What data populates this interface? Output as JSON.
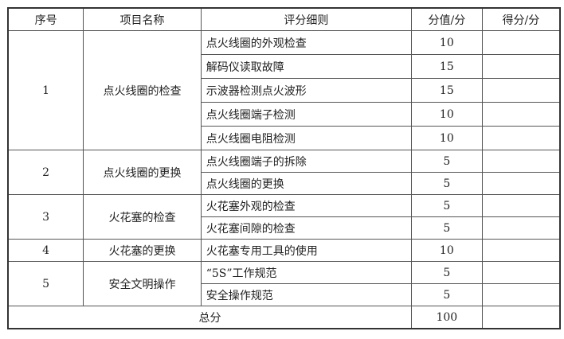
{
  "headers": [
    "序号",
    "项目名称",
    "评分细则",
    "分值/分",
    "得分/分"
  ],
  "groups": [
    {
      "no": "1",
      "name": "点火线圈的检查",
      "items": [
        {
          "rule": "点火线圈的外观检查",
          "score": "10"
        },
        {
          "rule": "解码仪读取故障",
          "score": "15"
        },
        {
          "rule": "示波器检测点火波形",
          "score": "15"
        },
        {
          "rule": "点火线圈端子检测",
          "score": "10"
        },
        {
          "rule": "点火线圈电阻检测",
          "score": "10"
        }
      ]
    },
    {
      "no": "2",
      "name": "点火线圈的更换",
      "items": [
        {
          "rule": "点火线圈端子的拆除",
          "score": "5"
        },
        {
          "rule": "点火线圈的更换",
          "score": "5"
        }
      ]
    },
    {
      "no": "3",
      "name": "火花塞的检查",
      "items": [
        {
          "rule": "火花塞外观的检查",
          "score": "5"
        },
        {
          "rule": "火花塞间隙的检查",
          "score": "5"
        }
      ]
    },
    {
      "no": "4",
      "name": "火花塞的更换",
      "items": [
        {
          "rule": "火花塞专用工具的使用",
          "score": "10"
        }
      ]
    },
    {
      "no": "5",
      "name": "安全文明操作",
      "items": [
        {
          "rule": "“5S”工作规范",
          "score": "5"
        },
        {
          "rule": "安全操作规范",
          "score": "5"
        }
      ]
    }
  ],
  "total": {
    "label": "总分",
    "score": "100"
  }
}
